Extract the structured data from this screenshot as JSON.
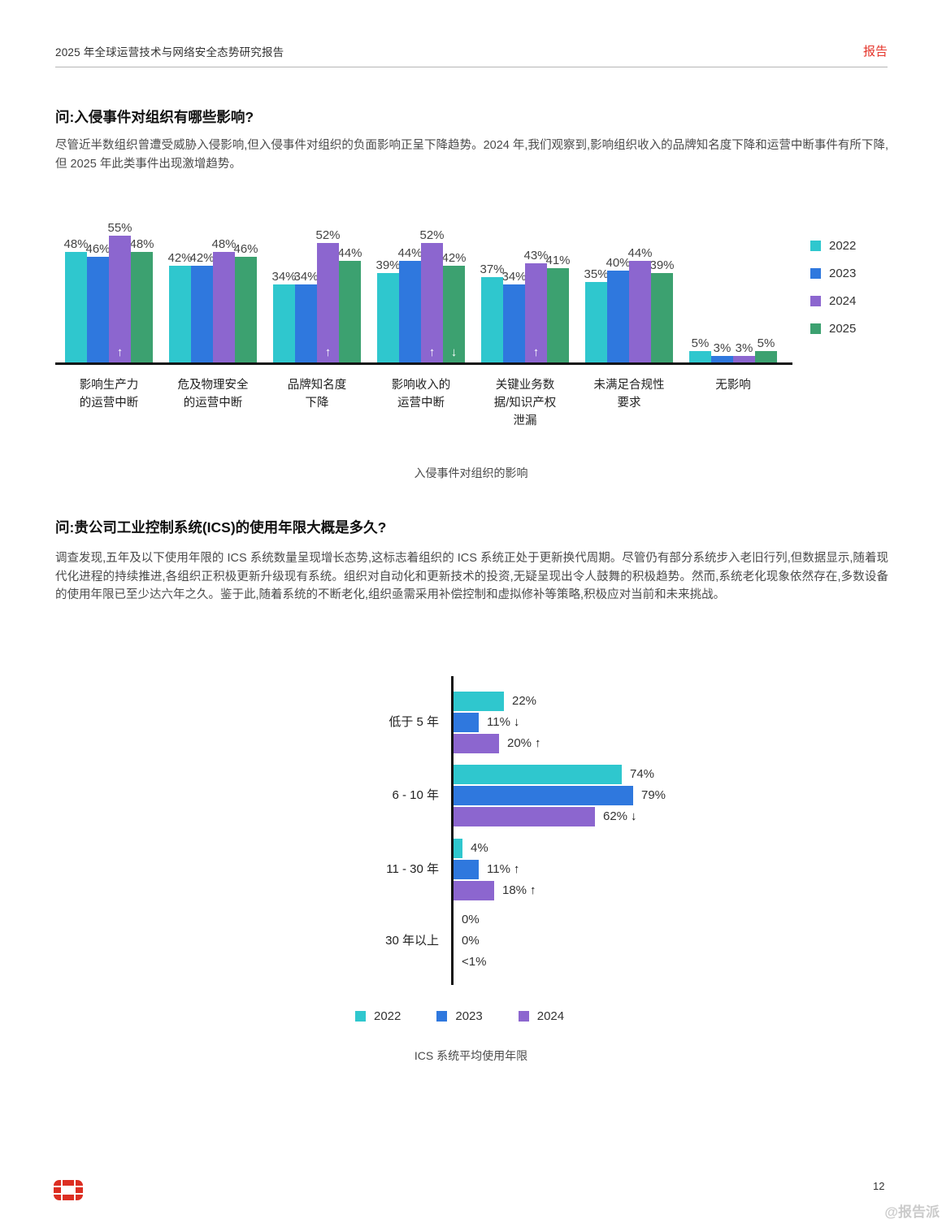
{
  "header": {
    "title": "2025 年全球运营技术与网络安全态势研究报告",
    "badge": "报告",
    "accent_color": "#e5352b"
  },
  "section1": {
    "question": "问:入侵事件对组织有哪些影响?",
    "body": "尽管近半数组织曾遭受威胁入侵影响,但入侵事件对组织的负面影响正呈下降趋势。2024 年,我们观察到,影响组织收入的品牌知名度下降和运营中断事件有所下降,但 2025 年此类事件出现激增趋势。"
  },
  "section2": {
    "question": "问:贵公司工业控制系统(ICS)的使用年限大概是多久?",
    "body": "调查发现,五年及以下使用年限的 ICS 系统数量呈现增长态势,这标志着组织的 ICS 系统正处于更新换代周期。尽管仍有部分系统步入老旧行列,但数据显示,随着现代化进程的持续推进,各组织正积极更新升级现有系统。组织对自动化和更新技术的投资,无疑呈现出令人鼓舞的积极趋势。然而,系统老化现象依然存在,多数设备的使用年限已至少达六年之久。鉴于此,随着系统的不断老化,组织亟需采用补偿控制和虚拟修补等策略,积极应对当前和未来挑战。"
  },
  "chart_data": [
    {
      "type": "bar",
      "title": "入侵事件对组织的影响",
      "categories": [
        "影响生产力\n的运营中断",
        "危及物理安全\n的运营中断",
        "品牌知名度\n下降",
        "影响收入的\n运营中断",
        "关键业务数\n据/知识产权\n泄漏",
        "未满足合规性\n要求",
        "无影响"
      ],
      "series": [
        {
          "name": "2022",
          "color": "#2fc7ce",
          "values": [
            48,
            42,
            34,
            39,
            37,
            35,
            5
          ]
        },
        {
          "name": "2023",
          "color": "#2f78de",
          "values": [
            46,
            42,
            34,
            44,
            34,
            40,
            3
          ]
        },
        {
          "name": "2024",
          "color": "#8c66cf",
          "values": [
            55,
            48,
            52,
            52,
            43,
            44,
            3
          ],
          "bar_arrows": [
            "up",
            null,
            "up",
            "up",
            "up",
            null,
            null
          ]
        },
        {
          "name": "2025",
          "color": "#3ca170",
          "values": [
            48,
            46,
            44,
            42,
            41,
            39,
            5
          ],
          "bar_arrows": [
            null,
            null,
            null,
            "down",
            null,
            null,
            null
          ]
        }
      ],
      "value_suffix": "%",
      "legend_position": "right",
      "ylim": [
        0,
        60
      ],
      "grid": false
    },
    {
      "type": "horizontal_bar",
      "title": "ICS 系统平均使用年限",
      "categories": [
        "低于 5 年",
        "6 - 10 年",
        "11 - 30 年",
        "30 年以上"
      ],
      "series": [
        {
          "name": "2022",
          "color": "#2fc7ce",
          "values": [
            22,
            74,
            4,
            0
          ],
          "labels": [
            "22%",
            "74%",
            "4%",
            "0%"
          ],
          "arrows": [
            null,
            null,
            null,
            null
          ]
        },
        {
          "name": "2023",
          "color": "#2f78de",
          "values": [
            11,
            79,
            11,
            0
          ],
          "labels": [
            "11%",
            "79%",
            "11%",
            "0%"
          ],
          "arrows": [
            "down",
            null,
            "up",
            null
          ]
        },
        {
          "name": "2024",
          "color": "#8c66cf",
          "values": [
            20,
            62,
            18,
            0.5
          ],
          "labels": [
            "20%",
            "62%",
            "18%",
            "<1%"
          ],
          "arrows": [
            "up",
            "down",
            "up",
            null
          ]
        }
      ],
      "legend_position": "bottom",
      "xlim": [
        0,
        100
      ],
      "grid": false
    }
  ],
  "footer": {
    "page_number": "12",
    "watermark": "@报告派"
  }
}
